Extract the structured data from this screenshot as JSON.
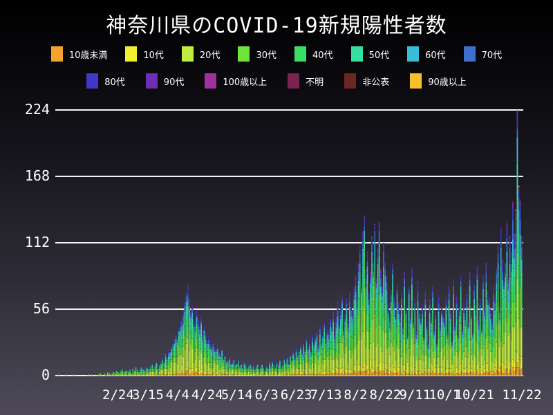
{
  "title": "神奈川県のCOVID-19新規陽性者数",
  "legend": {
    "row1": [
      {
        "label": "10歳未満",
        "color": "#F4A32C"
      },
      {
        "label": "10代",
        "color": "#F2EF31"
      },
      {
        "label": "20代",
        "color": "#C0EC3F"
      },
      {
        "label": "30代",
        "color": "#6FE53C"
      },
      {
        "label": "40代",
        "color": "#3ADE62"
      },
      {
        "label": "50代",
        "color": "#37DFA2"
      },
      {
        "label": "60代",
        "color": "#39BED9"
      },
      {
        "label": "70代",
        "color": "#3C70CB"
      }
    ],
    "row2": [
      {
        "label": "80代",
        "color": "#4237C7"
      },
      {
        "label": "90代",
        "color": "#6C2EB3"
      },
      {
        "label": "100歳以上",
        "color": "#A1309E"
      },
      {
        "label": "不明",
        "color": "#7B2351"
      },
      {
        "label": "非公表",
        "color": "#6D2621"
      },
      {
        "label": "90歳以上",
        "color": "#F8C12C"
      }
    ]
  },
  "chart_data": {
    "type": "bar",
    "stacked": true,
    "title": "神奈川県のCOVID-19新規陽性者数",
    "xlabel": "",
    "ylabel": "",
    "ylim": [
      0,
      224
    ],
    "yticks": [
      0,
      56,
      112,
      168,
      224
    ],
    "grid": "horizontal white gridlines, bars drawn over them",
    "legend_position": "top, two centered rows",
    "background": "black to purple-gray vertical gradient",
    "gridline_color": "#F5F5F7",
    "text_color": "#FFFFFF",
    "groups": [
      "10歳未満",
      "10代",
      "20代",
      "30代",
      "40代",
      "50代",
      "60代",
      "70代",
      "80代",
      "90代",
      "100歳以上",
      "不明",
      "非公表",
      "90歳以上"
    ],
    "group_colors": [
      "#F4A32C",
      "#F2EF31",
      "#C0EC3F",
      "#6FE53C",
      "#3ADE62",
      "#37DFA2",
      "#39BED9",
      "#3C70CB",
      "#4237C7",
      "#6C2EB3",
      "#A1309E",
      "#7B2351",
      "#6D2621",
      "#F8C12C"
    ],
    "age_share_estimate": [
      0.035,
      0.055,
      0.235,
      0.165,
      0.15,
      0.125,
      0.08,
      0.07,
      0.05,
      0.02,
      0.004,
      0.006,
      0.003,
      0.002
    ],
    "xticks": [
      {
        "label": "2/24",
        "day": 40
      },
      {
        "label": "3/15",
        "day": 60
      },
      {
        "label": "4/4",
        "day": 80
      },
      {
        "label": "4/24",
        "day": 100
      },
      {
        "label": "5/14",
        "day": 120
      },
      {
        "label": "6/3",
        "day": 140
      },
      {
        "label": "6/23",
        "day": 160
      },
      {
        "label": "7/13",
        "day": 180
      },
      {
        "label": "8/2",
        "day": 200
      },
      {
        "label": "8/22",
        "day": 220
      },
      {
        "label": "9/11",
        "day": 240
      },
      {
        "label": "10/1",
        "day": 260
      },
      {
        "label": "10/21",
        "day": 280
      },
      {
        "label": "11/22",
        "day": 312
      }
    ],
    "daily_totals": [
      1,
      0,
      0,
      0,
      0,
      1,
      0,
      0,
      0,
      0,
      1,
      0,
      0,
      0,
      0,
      0,
      0,
      0,
      0,
      0,
      1,
      0,
      1,
      0,
      0,
      1,
      0,
      1,
      2,
      1,
      0,
      2,
      1,
      3,
      2,
      1,
      2,
      3,
      2,
      4,
      3,
      2,
      4,
      5,
      3,
      4,
      4,
      3,
      5,
      2,
      6,
      4,
      7,
      5,
      3,
      6,
      8,
      5,
      4,
      7,
      6,
      5,
      8,
      10,
      7,
      9,
      12,
      8,
      10,
      11,
      14,
      12,
      18,
      16,
      20,
      22,
      25,
      28,
      30,
      35,
      32,
      40,
      45,
      50,
      55,
      62,
      70,
      78,
      65,
      55,
      60,
      50,
      45,
      55,
      48,
      42,
      50,
      38,
      42,
      35,
      30,
      33,
      28,
      25,
      30,
      24,
      22,
      25,
      20,
      18,
      22,
      15,
      18,
      12,
      14,
      16,
      10,
      12,
      15,
      9,
      11,
      13,
      8,
      10,
      7,
      12,
      9,
      6,
      8,
      11,
      7,
      9,
      5,
      8,
      10,
      6,
      7,
      9,
      7,
      5,
      9,
      6,
      11,
      8,
      13,
      10,
      7,
      12,
      9,
      14,
      8,
      10,
      15,
      12,
      16,
      10,
      18,
      14,
      20,
      16,
      24,
      18,
      22,
      26,
      20,
      28,
      24,
      32,
      25,
      30,
      22,
      35,
      28,
      32,
      38,
      26,
      42,
      30,
      36,
      45,
      34,
      40,
      38,
      48,
      42,
      55,
      35,
      50,
      62,
      45,
      58,
      68,
      40,
      52,
      65,
      48,
      70,
      58,
      55,
      75,
      85,
      68,
      95,
      110,
      78,
      122,
      135,
      92,
      105,
      70,
      88,
      118,
      95,
      128,
      82,
      108,
      130,
      90,
      75,
      112,
      96,
      85,
      60,
      48,
      72,
      95,
      66,
      54,
      78,
      62,
      55,
      70,
      42,
      88,
      60,
      35,
      75,
      50,
      90,
      45,
      65,
      38,
      80,
      55,
      48,
      60,
      35,
      72,
      45,
      28,
      65,
      50,
      75,
      40,
      55,
      30,
      68,
      46,
      58,
      52,
      48,
      65,
      38,
      75,
      55,
      30,
      82,
      44,
      68,
      35,
      58,
      85,
      40,
      62,
      50,
      70,
      45,
      88,
      55,
      38,
      78,
      60,
      92,
      48,
      65,
      40,
      85,
      58,
      95,
      72,
      66,
      56,
      48,
      75,
      66,
      90,
      110,
      58,
      125,
      98,
      80,
      95,
      130,
      82,
      118,
      105,
      147,
      120,
      140,
      224,
      160,
      148,
      118
    ]
  }
}
